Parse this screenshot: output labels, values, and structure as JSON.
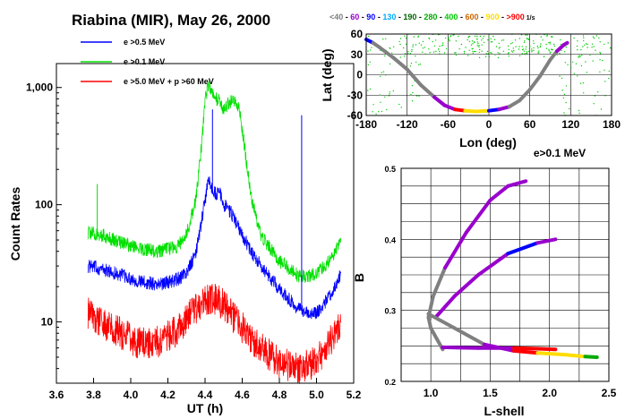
{
  "chart_data": [
    {
      "type": "line",
      "title": "Riabina (MIR), May 26, 2000",
      "xlabel": "UT (h)",
      "ylabel": "Count Rates",
      "xlim": [
        3.6,
        5.2
      ],
      "ylim": [
        3,
        1600
      ],
      "yscale": "log",
      "xticks": [
        "3.6",
        "3.8",
        "4.0",
        "4.2",
        "4.4",
        "4.6",
        "4.8",
        "5.0",
        "5.2"
      ],
      "yticks": [
        {
          "v": 10,
          "label": "10"
        },
        {
          "v": 100,
          "label": "100"
        },
        {
          "v": 1000,
          "label": "1,000"
        }
      ],
      "legend_placement": "top",
      "series": [
        {
          "name": "e >0.5 MeV",
          "color": "#0000ff",
          "x": [
            3.77,
            3.85,
            3.95,
            4.05,
            4.15,
            4.25,
            4.3,
            4.35,
            4.38,
            4.4,
            4.42,
            4.44,
            4.46,
            4.48,
            4.5,
            4.52,
            4.55,
            4.6,
            4.65,
            4.7,
            4.8,
            4.9,
            4.95,
            5.0,
            5.05,
            5.1,
            5.13
          ],
          "y": [
            30,
            28,
            25,
            22,
            21,
            23,
            26,
            38,
            70,
            110,
            165,
            130,
            125,
            125,
            100,
            95,
            80,
            55,
            40,
            30,
            19,
            13,
            12,
            12,
            15,
            20,
            26
          ],
          "spikes": [
            {
              "x": 4.44,
              "y": 650
            },
            {
              "x": 4.92,
              "y": 580
            }
          ]
        },
        {
          "name": "e >0.1 MeV",
          "color": "#00e000",
          "x": [
            3.77,
            3.85,
            3.95,
            4.05,
            4.15,
            4.25,
            4.3,
            4.35,
            4.38,
            4.4,
            4.42,
            4.44,
            4.46,
            4.48,
            4.5,
            4.52,
            4.55,
            4.58,
            4.6,
            4.65,
            4.7,
            4.8,
            4.9,
            4.95,
            5.0,
            5.05,
            5.1,
            5.13
          ],
          "y": [
            58,
            55,
            47,
            42,
            40,
            44,
            55,
            110,
            300,
            800,
            1050,
            870,
            800,
            780,
            620,
            720,
            780,
            700,
            450,
            110,
            55,
            33,
            25,
            24,
            26,
            31,
            40,
            52
          ],
          "spikes": [
            {
              "x": 3.82,
              "y": 150
            }
          ]
        },
        {
          "name": "e >5.0 MeV + p >60 MeV",
          "color": "#ff0000",
          "x": [
            3.77,
            3.85,
            3.95,
            4.05,
            4.15,
            4.25,
            4.35,
            4.4,
            4.45,
            4.5,
            4.55,
            4.6,
            4.7,
            4.8,
            4.9,
            5.0,
            5.05,
            5.1,
            5.13
          ],
          "y": [
            12,
            9.5,
            8,
            6.5,
            6.8,
            8.5,
            13,
            15,
            16,
            14,
            11,
            9,
            6,
            4.5,
            4,
            4.6,
            6,
            8,
            10
          ]
        }
      ]
    },
    {
      "type": "scatter",
      "xlabel": "Lon (deg)",
      "ylabel": "Lat (deg)",
      "xlim": [
        -180,
        180
      ],
      "ylim": [
        -60,
        60
      ],
      "xticks": [
        "-180",
        "-120",
        "-60",
        "0",
        "60",
        "120",
        "180"
      ],
      "yticks": [
        "60",
        "30",
        "0",
        "-30",
        "-60"
      ],
      "annotation": "e>0.1 MeV",
      "color_scale": [
        {
          "label": "<40",
          "color": "#808080"
        },
        {
          "label": "60",
          "color": "#9900cc"
        },
        {
          "label": "90",
          "color": "#0000ff"
        },
        {
          "label": "130",
          "color": "#00aaff"
        },
        {
          "label": "190",
          "color": "#006600"
        },
        {
          "label": "280",
          "color": "#00aa00"
        },
        {
          "label": "400",
          "color": "#00cc00"
        },
        {
          "label": "600",
          "color": "#cc6600"
        },
        {
          "label": "900",
          "color": "#ffdd00"
        },
        {
          "label": ">900",
          "color": "#ff0000"
        }
      ],
      "color_scale_unit": "1/s",
      "track": [
        {
          "lon": -180,
          "lat": 52,
          "c": "#9900cc"
        },
        {
          "lon": -170,
          "lat": 47,
          "c": "#0000ff"
        },
        {
          "lon": -160,
          "lat": 40,
          "c": "#808080"
        },
        {
          "lon": -140,
          "lat": 25,
          "c": "#808080"
        },
        {
          "lon": -120,
          "lat": 8,
          "c": "#808080"
        },
        {
          "lon": -100,
          "lat": -15,
          "c": "#808080"
        },
        {
          "lon": -80,
          "lat": -33,
          "c": "#808080"
        },
        {
          "lon": -65,
          "lat": -45,
          "c": "#9900cc"
        },
        {
          "lon": -50,
          "lat": -51,
          "c": "#9900cc"
        },
        {
          "lon": -35,
          "lat": -53,
          "c": "#ff0000"
        },
        {
          "lon": -20,
          "lat": -54,
          "c": "#ffdd00"
        },
        {
          "lon": 0,
          "lat": -53,
          "c": "#ffdd00"
        },
        {
          "lon": 15,
          "lat": -51,
          "c": "#0000ff"
        },
        {
          "lon": 30,
          "lat": -47,
          "c": "#9900cc"
        },
        {
          "lon": 45,
          "lat": -38,
          "c": "#808080"
        },
        {
          "lon": 60,
          "lat": -22,
          "c": "#808080"
        },
        {
          "lon": 75,
          "lat": -2,
          "c": "#808080"
        },
        {
          "lon": 90,
          "lat": 22,
          "c": "#808080"
        },
        {
          "lon": 100,
          "lat": 35,
          "c": "#808080"
        },
        {
          "lon": 110,
          "lat": 44,
          "c": "#9900cc"
        },
        {
          "lon": 115,
          "lat": 47,
          "c": "#9900cc"
        }
      ]
    },
    {
      "type": "line",
      "xlabel": "L-shell",
      "ylabel": "B",
      "xlim": [
        0.75,
        2.5
      ],
      "ylim": [
        0.2,
        0.5
      ],
      "xticks": [
        "1.0",
        "1.5",
        "2.0",
        "2.5"
      ],
      "yticks": [
        "0.2",
        "0.3",
        "0.4",
        "0.5"
      ],
      "curves": [
        {
          "pts": [
            [
              1.1,
              0.245
            ],
            [
              1.05,
              0.26
            ],
            [
              1.0,
              0.275
            ],
            [
              0.98,
              0.29
            ],
            [
              1.02,
              0.32
            ],
            [
              1.12,
              0.36
            ],
            [
              1.3,
              0.41
            ],
            [
              1.5,
              0.455
            ],
            [
              1.65,
              0.475
            ],
            [
              1.8,
              0.482
            ]
          ],
          "colors": [
            "#808080",
            "#808080",
            "#808080",
            "#808080",
            "#808080",
            "#808080",
            "#9900cc",
            "#9900cc",
            "#9900cc",
            "#9900cc"
          ]
        },
        {
          "pts": [
            [
              1.05,
              0.292
            ],
            [
              1.2,
              0.32
            ],
            [
              1.4,
              0.35
            ],
            [
              1.65,
              0.38
            ],
            [
              1.9,
              0.395
            ],
            [
              2.05,
              0.4
            ]
          ],
          "colors": [
            "#808080",
            "#9900cc",
            "#9900cc",
            "#9900cc",
            "#0000ff",
            "#9900cc"
          ]
        },
        {
          "pts": [
            [
              0.98,
              0.295
            ],
            [
              1.2,
              0.275
            ],
            [
              1.45,
              0.252
            ],
            [
              1.7,
              0.243
            ],
            [
              1.9,
              0.24
            ],
            [
              2.1,
              0.238
            ],
            [
              2.3,
              0.235
            ],
            [
              2.4,
              0.234
            ]
          ],
          "colors": [
            "#808080",
            "#808080",
            "#808080",
            "#9900cc",
            "#ff0000",
            "#ffdd00",
            "#ffdd00",
            "#00aa00"
          ]
        },
        {
          "pts": [
            [
              1.1,
              0.248
            ],
            [
              1.4,
              0.247
            ],
            [
              1.7,
              0.247
            ],
            [
              1.9,
              0.246
            ],
            [
              2.05,
              0.245
            ]
          ],
          "colors": [
            "#9900cc",
            "#9900cc",
            "#9900cc",
            "#ff0000",
            "#ff0000"
          ]
        }
      ]
    }
  ]
}
